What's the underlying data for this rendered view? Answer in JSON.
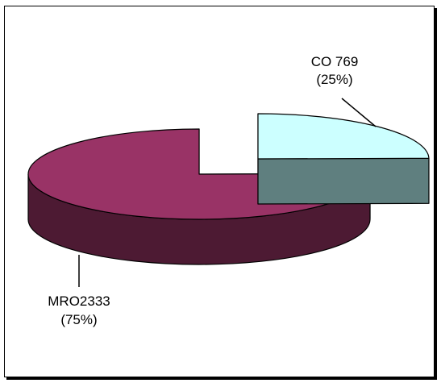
{
  "chart_data": {
    "type": "pie",
    "style": "3d-exploded",
    "title": "",
    "slices": [
      {
        "label": "CO",
        "value": 769,
        "percent_label": "(25%)",
        "name_label": "CO 769",
        "color_top": "#ccffff",
        "color_side": "#5f7f7f"
      },
      {
        "label": "MRO",
        "value": 2333,
        "percent_label": "(75%)",
        "name_label": "MRO2333",
        "color_top": "#993366",
        "color_side": "#4d1a33"
      }
    ],
    "legend": "none"
  }
}
